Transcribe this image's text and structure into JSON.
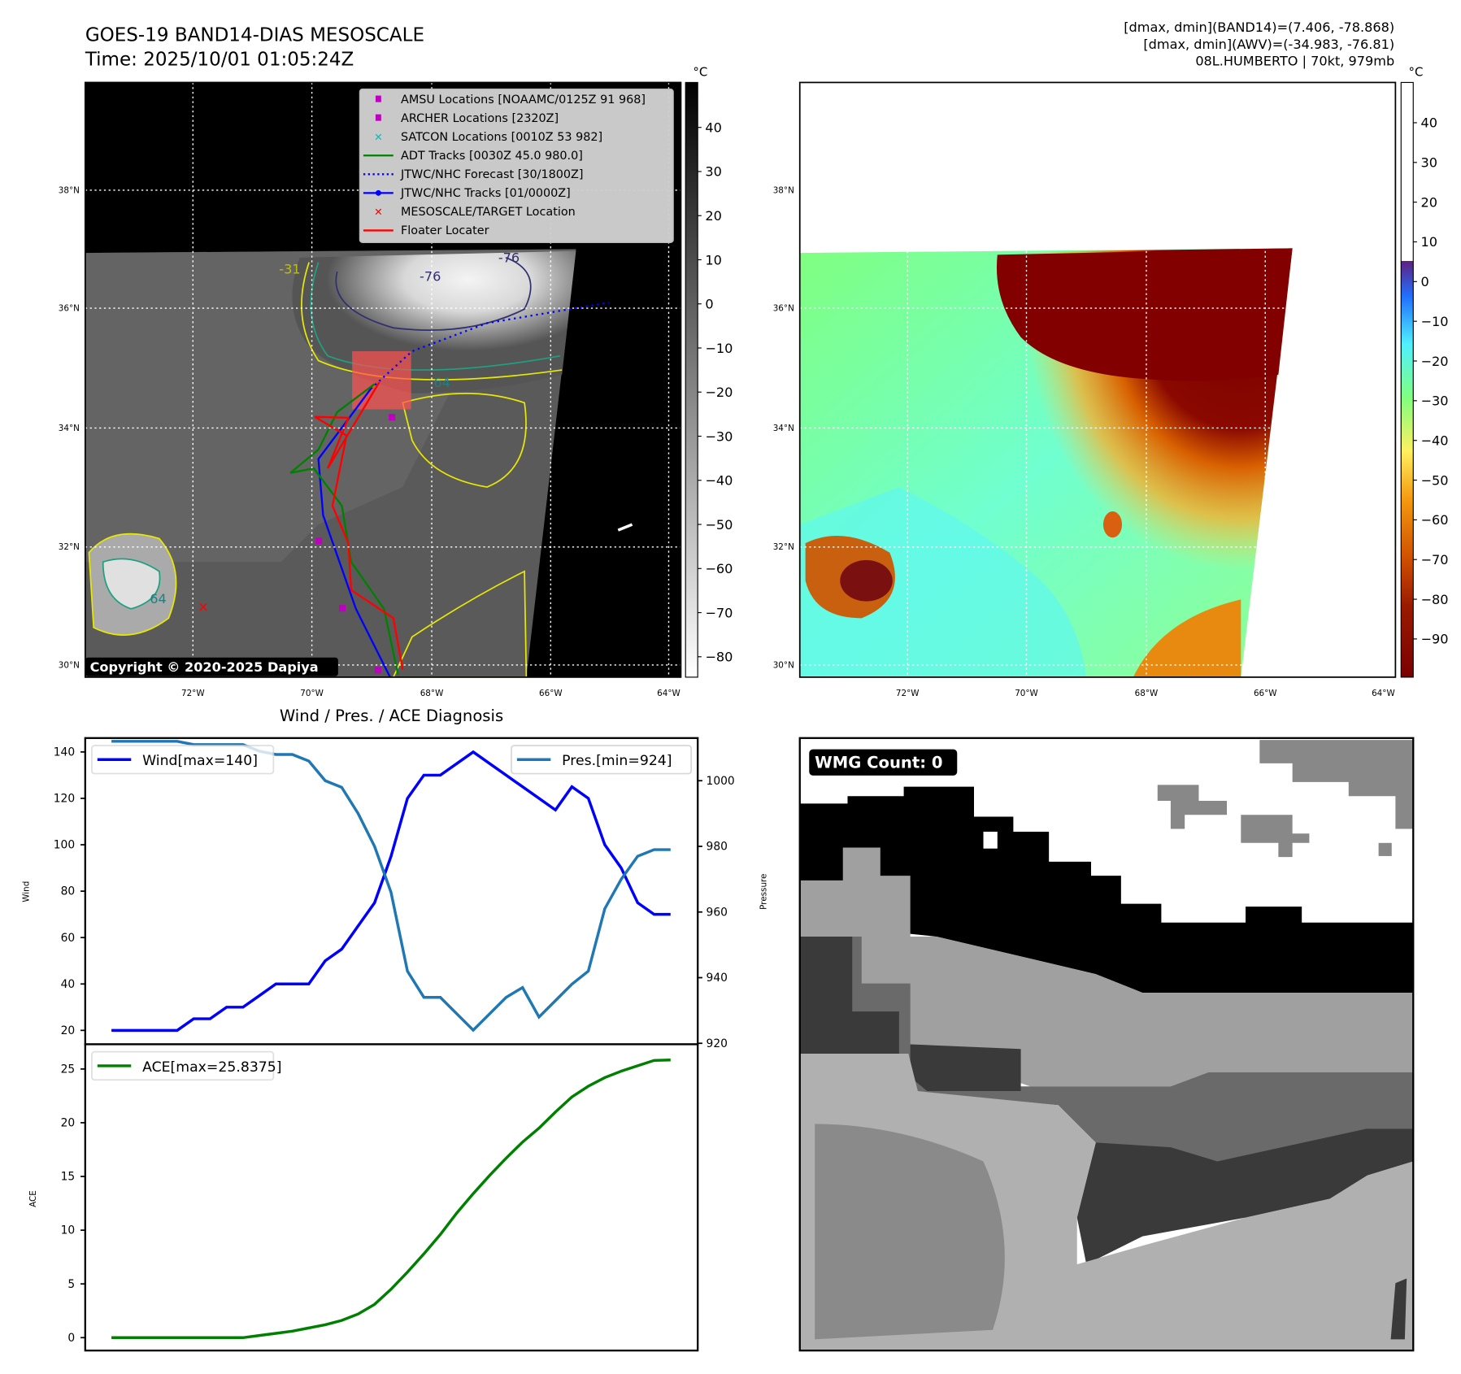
{
  "header": {
    "title": "GOES-19 BAND14-DIAS MESOSCALE",
    "time": "Time: 2025/10/01 01:05:24Z",
    "info_band14": "[dmax, dmin](BAND14)=(7.406, -78.868)",
    "info_awv": "[dmax, dmin](AWV)=(-34.983, -76.81)",
    "storm": "08L.HUMBERTO | 70kt, 979mb"
  },
  "map": {
    "lon_ticks": [
      "72°W",
      "70°W",
      "68°W",
      "66°W",
      "64°W"
    ],
    "lat_ticks": [
      "38°N",
      "36°N",
      "34°N",
      "32°N",
      "30°N"
    ],
    "copyright": "Copyright © 2020-2025 Dapiya",
    "contour_labels": [
      "-76",
      "-76",
      "64",
      "64",
      "-31"
    ],
    "legend": [
      {
        "label": "AMSU Locations [NOAAMC/0125Z 91 968]",
        "marker": "square",
        "color": "#c000c0"
      },
      {
        "label": "ARCHER Locations [2320Z]",
        "marker": "square",
        "color": "#c000c0"
      },
      {
        "label": "SATCON Locations [0010Z 53 982]",
        "marker": "x",
        "color": "#00c0c0"
      },
      {
        "label": "ADT Tracks [0030Z 45.0 980.0]",
        "marker": "line",
        "color": "#008000"
      },
      {
        "label": "JTWC/NHC Forecast [30/1800Z]",
        "marker": "dotted",
        "color": "#0000ff"
      },
      {
        "label": "JTWC/NHC Tracks [01/0000Z]",
        "marker": "line-dot",
        "color": "#0000ff"
      },
      {
        "label": "MESOSCALE/TARGET Location",
        "marker": "x",
        "color": "#ff0000"
      },
      {
        "label": "Floater Locater",
        "marker": "line",
        "color": "#ff0000"
      }
    ]
  },
  "colorbar_band14": {
    "unit": "°C",
    "ticks": [
      "40",
      "30",
      "20",
      "10",
      "0",
      "−10",
      "−20",
      "−30",
      "−40",
      "−50",
      "−60",
      "−70",
      "−80"
    ]
  },
  "colorbar_awv": {
    "unit": "°C",
    "ticks": [
      "40",
      "30",
      "20",
      "10",
      "0",
      "−10",
      "−20",
      "−30",
      "−40",
      "−50",
      "−60",
      "−70",
      "−80",
      "−90"
    ]
  },
  "wmg": {
    "label": "WMG Count: 0"
  },
  "chart_data": [
    {
      "type": "line",
      "title": "Wind / Pres. / ACE Diagnosis",
      "ylabel": "Wind",
      "y2label": "Pressure",
      "ylim": [
        14,
        146
      ],
      "y2lim": [
        919.7,
        1013
      ],
      "yticks": [
        "20",
        "40",
        "60",
        "80",
        "100",
        "120",
        "140"
      ],
      "y2ticks": [
        "920",
        "940",
        "960",
        "980",
        "1000"
      ],
      "series": [
        {
          "name": "Wind[max=140]",
          "color": "#0000ff",
          "axis": "left",
          "values": [
            20,
            20,
            20,
            20,
            20,
            25,
            25,
            30,
            30,
            35,
            40,
            40,
            40,
            50,
            55,
            65,
            75,
            95,
            120,
            130,
            130,
            135,
            140,
            135,
            130,
            125,
            120,
            115,
            125,
            120,
            100,
            90,
            75,
            70,
            70
          ]
        },
        {
          "name": "Pres.[min=924]",
          "color": "#1f77b4",
          "axis": "right",
          "values": [
            1012,
            1012,
            1012,
            1012,
            1012,
            1011,
            1011,
            1011,
            1011,
            1009,
            1008,
            1008,
            1006,
            1000,
            998,
            990,
            980,
            966,
            942,
            934,
            934,
            929,
            924,
            929,
            934,
            937,
            928,
            933,
            938,
            942,
            961,
            970,
            977,
            979,
            979
          ]
        }
      ]
    },
    {
      "type": "line",
      "ylabel": "ACE",
      "ylim": [
        -1.2,
        27.3
      ],
      "yticks": [
        "0",
        "5",
        "10",
        "15",
        "20",
        "25"
      ],
      "series": [
        {
          "name": "ACE[max=25.8375]",
          "color": "#008000",
          "values": [
            0,
            0,
            0,
            0,
            0,
            0,
            0,
            0,
            0,
            0.2,
            0.4,
            0.6,
            0.9,
            1.2,
            1.6,
            2.2,
            3.1,
            4.5,
            6.1,
            7.8,
            9.6,
            11.6,
            13.4,
            15.1,
            16.7,
            18.2,
            19.5,
            21.0,
            22.4,
            23.4,
            24.2,
            24.8,
            25.3,
            25.8,
            25.84
          ]
        }
      ]
    }
  ]
}
